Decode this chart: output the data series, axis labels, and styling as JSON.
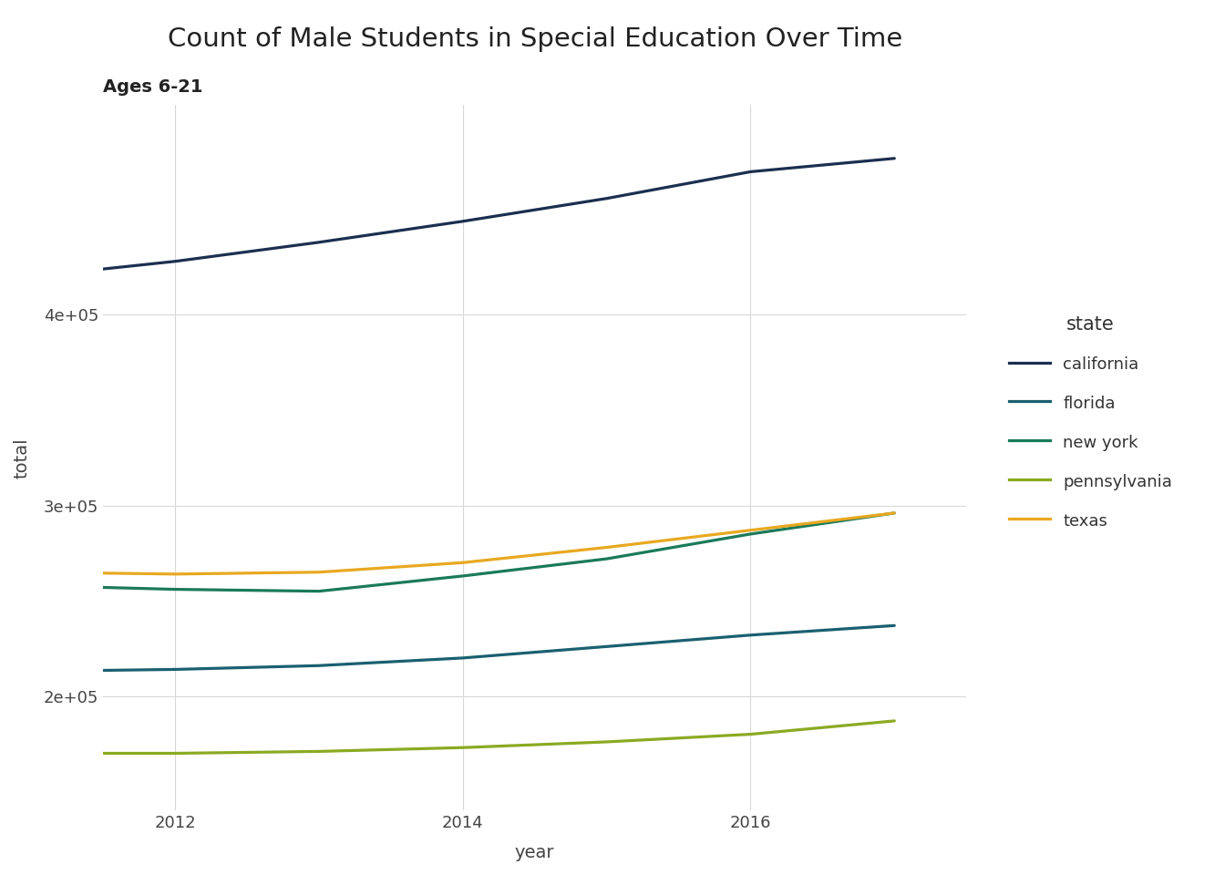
{
  "title": "Count of Male Students in Special Education Over Time",
  "subtitle": "Ages 6-21",
  "xlabel": "year",
  "ylabel": "total",
  "series": [
    {
      "label": "california",
      "color": "#1b2f4f",
      "values": [
        420000,
        428000,
        438000,
        449000,
        461000,
        475000,
        482000
      ]
    },
    {
      "label": "florida",
      "color": "#1a6070",
      "values": [
        213000,
        214000,
        216000,
        220000,
        226000,
        232000,
        237000
      ]
    },
    {
      "label": "new york",
      "color": "#1a7a5a",
      "values": [
        258000,
        256000,
        255000,
        263000,
        272000,
        285000,
        296000
      ]
    },
    {
      "label": "pennsylvania",
      "color": "#8aaa22",
      "values": [
        170000,
        170000,
        171000,
        173000,
        176000,
        180000,
        187000
      ]
    },
    {
      "label": "texas",
      "color": "#e8a820",
      "values": [
        265000,
        264000,
        265000,
        270000,
        278000,
        287000,
        296000
      ]
    }
  ],
  "years": [
    2011,
    2012,
    2013,
    2014,
    2015,
    2016,
    2017
  ],
  "xlim": [
    2011.5,
    2017.5
  ],
  "ylim": [
    140000,
    510000
  ],
  "yticks": [
    200000,
    300000,
    400000
  ],
  "xticks": [
    2012,
    2014,
    2016
  ],
  "background_color": "#ffffff",
  "grid_color": "#d8d8d8",
  "title_fontsize": 21,
  "subtitle_fontsize": 14,
  "label_fontsize": 14,
  "tick_fontsize": 13,
  "line_width": 2.3,
  "legend_title": "state",
  "legend_title_fontsize": 15,
  "legend_fontsize": 13
}
